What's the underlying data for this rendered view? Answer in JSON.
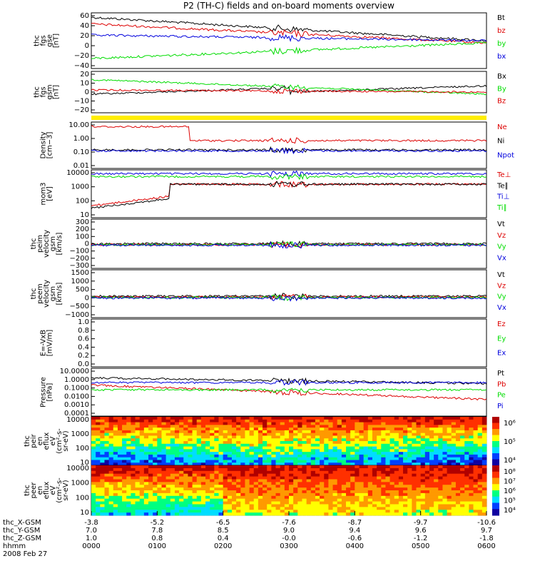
{
  "title": "P2 (TH-C) fields and on-board moments overview",
  "colors": {
    "black": "#000000",
    "red": "#dd0000",
    "green": "#00dd00",
    "blue": "#0000dd",
    "yellow": "#ffee00"
  },
  "chart_data": [
    {
      "type": "line",
      "ylabel": [
        "thc",
        "fgs",
        "gse",
        "[nT]"
      ],
      "yticks": [
        "60",
        "40",
        "20",
        "0",
        "−20",
        "−40"
      ],
      "yrange": [
        -40,
        60
      ],
      "series": [
        {
          "name": "Bt",
          "color": "black"
        },
        {
          "name": "bz",
          "color": "red"
        },
        {
          "name": "by",
          "color": "green"
        },
        {
          "name": "bx",
          "color": "blue"
        }
      ]
    },
    {
      "type": "line",
      "ylabel": [
        "thc",
        "fgs",
        "gsm",
        "[nT]"
      ],
      "yticks": [
        "20",
        "10",
        "0",
        "−10",
        "−20"
      ],
      "yrange": [
        -25,
        25
      ],
      "series": [
        {
          "name": "Bx",
          "color": "black"
        },
        {
          "name": "By",
          "color": "green"
        },
        {
          "name": "Bz",
          "color": "red"
        }
      ]
    },
    {
      "type": "line",
      "ylabel": [
        "Density",
        "[cm−3]"
      ],
      "yticks": [
        "10.00",
        "1.00",
        "0.10",
        "0.01"
      ],
      "log": true,
      "series": [
        {
          "name": "Ne",
          "color": "red"
        },
        {
          "name": "Ni",
          "color": "black"
        },
        {
          "name": "Npot",
          "color": "blue"
        }
      ]
    },
    {
      "type": "line",
      "ylabel": [
        "mom3",
        "[eV]"
      ],
      "yticks": [
        "10000",
        "1000",
        "100",
        "10"
      ],
      "log": true,
      "series": [
        {
          "name": "Te⊥",
          "color": "red"
        },
        {
          "name": "Te∥",
          "color": "black"
        },
        {
          "name": "Ti⊥",
          "color": "blue"
        },
        {
          "name": "Ti∥",
          "color": "green"
        }
      ]
    },
    {
      "type": "line",
      "ylabel": [
        "thc",
        "peim",
        "velocity",
        "gsm",
        "[km/s]"
      ],
      "yticks": [
        "300",
        "200",
        "100",
        "0",
        "−100",
        "−200",
        "−300"
      ],
      "yrange": [
        -300,
        300
      ],
      "series": [
        {
          "name": "Vt",
          "color": "black"
        },
        {
          "name": "Vz",
          "color": "red"
        },
        {
          "name": "Vy",
          "color": "green"
        },
        {
          "name": "Vx",
          "color": "blue"
        }
      ]
    },
    {
      "type": "line",
      "ylabel": [
        "thc",
        "peem",
        "velocity",
        "gsm",
        "[km/s]"
      ],
      "yticks": [
        "1500",
        "1000",
        "500",
        "0",
        "−500",
        "−1000"
      ],
      "yrange": [
        -1000,
        1500
      ],
      "series": [
        {
          "name": "Vt",
          "color": "black"
        },
        {
          "name": "Vz",
          "color": "red"
        },
        {
          "name": "Vy",
          "color": "green"
        },
        {
          "name": "Vx",
          "color": "blue"
        }
      ]
    },
    {
      "type": "line",
      "ylabel": [
        "E=-VxB",
        "[mV/m]"
      ],
      "yticks": [
        "1.0",
        "0.8",
        "0.6",
        "0.4",
        "0.2",
        "0.0"
      ],
      "yrange": [
        0,
        1
      ],
      "series": [
        {
          "name": "Ez",
          "color": "red"
        },
        {
          "name": "Ey",
          "color": "green"
        },
        {
          "name": "Ex",
          "color": "blue"
        }
      ]
    },
    {
      "type": "line",
      "ylabel": [
        "Pressure",
        "[nPa]"
      ],
      "yticks": [
        "10.0000",
        "1.0000",
        "0.1000",
        "0.0100",
        "0.0010",
        "0.0001"
      ],
      "log": true,
      "series": [
        {
          "name": "Pt",
          "color": "black"
        },
        {
          "name": "Pb",
          "color": "red"
        },
        {
          "name": "Pe",
          "color": "green"
        },
        {
          "name": "Pi",
          "color": "blue"
        }
      ]
    },
    {
      "type": "heatmap",
      "ylabel": [
        "thc",
        "peir",
        "en",
        "eflux",
        "eV",
        "(cm²-s-",
        "sr-eV)"
      ],
      "yticks": [
        "10000",
        "1000",
        "100",
        "10"
      ],
      "colorbar": [
        "10⁶",
        "10⁵",
        "10⁴"
      ]
    },
    {
      "type": "heatmap",
      "ylabel": [
        "thc",
        "peer",
        "en",
        "eflux",
        "eV",
        "(cm²-s-",
        "sr-eV)"
      ],
      "yticks": [
        "10000",
        "1000",
        "100",
        "10"
      ],
      "colorbar": [
        "10⁸",
        "10⁷",
        "10⁶",
        "10⁵",
        "10⁴"
      ]
    }
  ],
  "xaxis": {
    "rows": [
      {
        "label": "thc_X-GSM",
        "values": [
          "-3.8",
          "-5.2",
          "-6.5",
          "-7.6",
          "-8.7",
          "-9.7",
          "-10.6"
        ]
      },
      {
        "label": "thc_Y-GSM",
        "values": [
          "7.0",
          "7.8",
          "8.5",
          "9.0",
          "9.4",
          "9.6",
          "9.7"
        ]
      },
      {
        "label": "thc_Z-GSM",
        "values": [
          "1.0",
          "0.8",
          "0.4",
          "-0.0",
          "-0.6",
          "-1.2",
          "-1.8"
        ]
      },
      {
        "label": "hhmm",
        "values": [
          "0000",
          "0100",
          "0200",
          "0300",
          "0400",
          "0500",
          "0600"
        ]
      }
    ],
    "date": "2008 Feb 27"
  }
}
